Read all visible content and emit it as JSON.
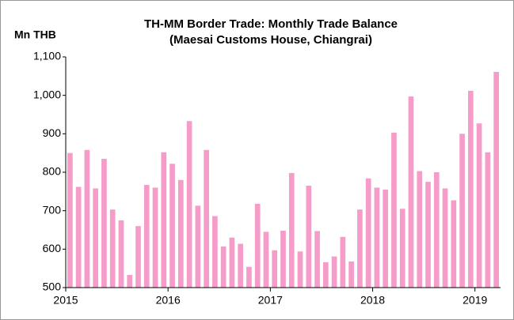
{
  "chart_data": {
    "type": "bar",
    "title": [
      "TH-MM Border Trade: Monthly Trade Balance",
      "(Maesai Customs House, Chiangrai)"
    ],
    "y_label": "Mn THB",
    "categories": [
      "2015",
      null,
      null,
      null,
      null,
      null,
      null,
      null,
      null,
      null,
      null,
      null,
      "2016",
      null,
      null,
      null,
      null,
      null,
      null,
      null,
      null,
      null,
      null,
      null,
      "2017",
      null,
      null,
      null,
      null,
      null,
      null,
      null,
      null,
      null,
      null,
      null,
      "2018",
      null,
      null,
      null,
      null,
      null,
      null,
      null,
      null,
      null,
      null,
      null,
      "2019",
      null,
      null
    ],
    "values": [
      850,
      762,
      858,
      758,
      835,
      703,
      675,
      533,
      660,
      767,
      760,
      852,
      822,
      780,
      933,
      713,
      858,
      686,
      607,
      630,
      614,
      554,
      718,
      645,
      597,
      648,
      798,
      594,
      765,
      647,
      566,
      581,
      632,
      568,
      703,
      784,
      760,
      755,
      903,
      705,
      997,
      803,
      775,
      800,
      758,
      727,
      900,
      1012,
      927,
      852,
      1061
    ],
    "color": "#f59cc9",
    "ylim": [
      500,
      1100
    ],
    "yticks": [
      500,
      600,
      700,
      800,
      900,
      {
        "value": 1000,
        "label": "1,000"
      },
      {
        "value": 1100,
        "label": "1,100"
      }
    ],
    "grid": false
  }
}
